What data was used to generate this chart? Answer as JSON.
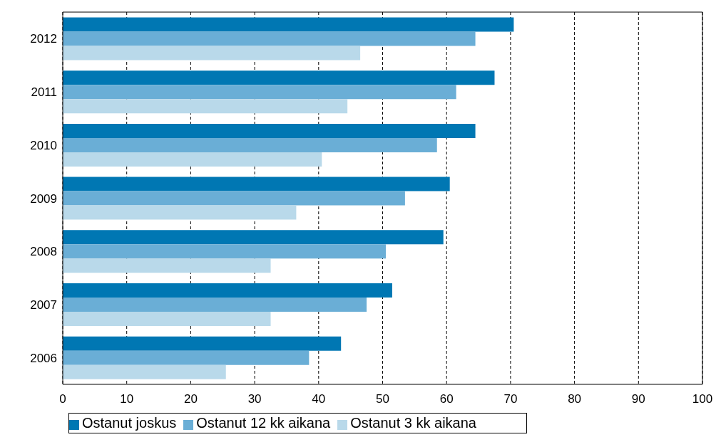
{
  "chart_data": {
    "type": "bar",
    "orientation": "horizontal",
    "categories": [
      "2012",
      "2011",
      "2010",
      "2009",
      "2008",
      "2007",
      "2006"
    ],
    "series": [
      {
        "name": "Ostanut joskus",
        "color": "#0077b3",
        "values": [
          70.5,
          67.5,
          64.5,
          60.5,
          59.5,
          51.5,
          43.5
        ]
      },
      {
        "name": "Ostanut 12 kk aikana",
        "color": "#6aaed6",
        "values": [
          64.5,
          61.5,
          58.5,
          53.5,
          50.5,
          47.5,
          38.5
        ]
      },
      {
        "name": "Ostanut 3 kk aikana",
        "color": "#b9d9ea",
        "values": [
          46.5,
          44.5,
          40.5,
          36.5,
          32.5,
          32.5,
          25.5
        ]
      }
    ],
    "xlim": [
      0,
      100
    ],
    "xticks": [
      0,
      10,
      20,
      30,
      40,
      50,
      60,
      70,
      80,
      90,
      100
    ],
    "grid": "x",
    "legend": "bottom"
  }
}
